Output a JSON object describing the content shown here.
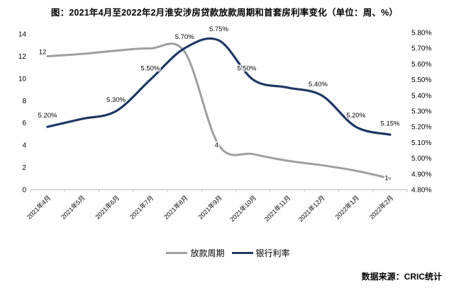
{
  "title": "图：2021年4月至2022年2月淮安涉房贷款放款周期和首套房利率变化（单位：周、%）",
  "source": "数据来源：CRIC统计",
  "colors": {
    "loan_cycle": "#9f9f9f",
    "bank_rate": "#1f3864",
    "axis": "#c8c8c8",
    "text": "#000000"
  },
  "chart_data": {
    "type": "line",
    "title": "图：2021年4月至2022年2月淮安涉房贷款放款周期和首套房利率变化（单位：周、%）",
    "categories": [
      "2021年4月",
      "2021年5月",
      "2021年6月",
      "2021年7月",
      "2021年8月",
      "2021年9月",
      "2021年10月",
      "2021年11月",
      "2021年12月",
      "2022年1月",
      "2022年2月"
    ],
    "series": [
      {
        "name": "放款周期",
        "axis": "left",
        "color": "#9f9f9f",
        "values": [
          12,
          12.2,
          12.5,
          12.7,
          12.4,
          4,
          3.2,
          2.6,
          2.2,
          1.7,
          1
        ],
        "point_labels": [
          "12",
          null,
          null,
          null,
          null,
          "4",
          null,
          null,
          null,
          null,
          "1"
        ]
      },
      {
        "name": "银行利率",
        "axis": "right",
        "color": "#1f3864",
        "values": [
          5.2,
          5.25,
          5.3,
          5.5,
          5.7,
          5.75,
          5.5,
          5.45,
          5.4,
          5.2,
          5.15
        ],
        "point_labels": [
          "5.20%",
          null,
          "5.30%",
          "5.50%",
          "5.70%",
          "5.75%",
          "5.50%",
          null,
          "5.40%",
          "5.20%",
          "5.15%"
        ]
      }
    ],
    "left_axis": {
      "min": 0,
      "max": 14,
      "tick_labels": [
        "0",
        "2",
        "4",
        "6",
        "8",
        "10",
        "12",
        "14"
      ]
    },
    "right_axis": {
      "min": 4.8,
      "max": 5.8,
      "tick_labels": [
        "4.80%",
        "4.90%",
        "5.00%",
        "5.10%",
        "5.20%",
        "5.30%",
        "5.40%",
        "5.50%",
        "5.60%",
        "5.70%",
        "5.80%"
      ]
    },
    "grid": false,
    "legend_position": "bottom",
    "smooth": true
  },
  "legend": {
    "loan_cycle_label": "放款周期",
    "bank_rate_label": "银行利率"
  }
}
